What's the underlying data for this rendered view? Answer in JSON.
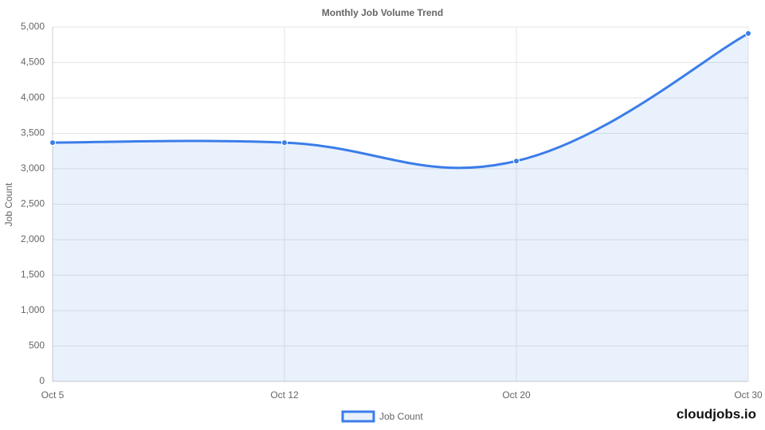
{
  "chart_data": {
    "type": "line",
    "title": "Monthly Job Volume Trend",
    "y_label": "Job Count",
    "categories": [
      "Oct 5",
      "Oct 12",
      "Oct 20",
      "Oct 30"
    ],
    "series": [
      {
        "name": "Job Count",
        "color": "#3b7de9",
        "values": [
          3370,
          3370,
          3110,
          4910
        ]
      }
    ],
    "ylim": [
      0,
      5000
    ],
    "yticks": [
      0,
      500,
      {
        "value": 1000,
        "label": "1,000"
      },
      {
        "value": 1500,
        "label": "1,500"
      },
      {
        "value": 2000,
        "label": "2,000"
      },
      {
        "value": 2500,
        "label": "2,500"
      },
      {
        "value": 3000,
        "label": "3,000"
      },
      {
        "value": 3500,
        "label": "3,500"
      },
      {
        "value": 4000,
        "label": "4,000"
      },
      {
        "value": 4500,
        "label": "4,500"
      },
      {
        "value": 5000,
        "label": "5,000"
      }
    ],
    "grid": true,
    "fill": true,
    "legend": "bottom"
  },
  "brand": "cloudjobs.io"
}
